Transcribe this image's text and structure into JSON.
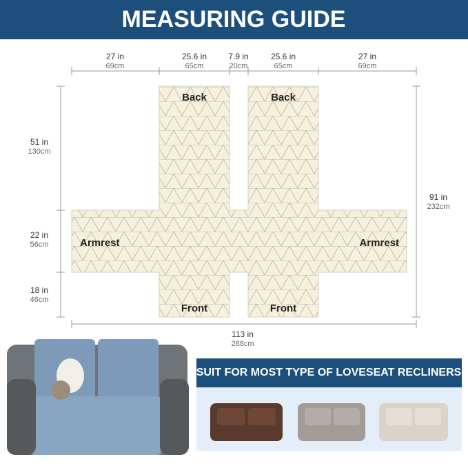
{
  "header": {
    "title": "MEASURING GUIDE"
  },
  "top_dimensions": [
    {
      "inch": "27 in",
      "cm": "69cm"
    },
    {
      "inch": "25.6 in",
      "cm": "65cm"
    },
    {
      "inch": "7.9 in",
      "cm": "20cm"
    },
    {
      "inch": "25.6 in",
      "cm": "65cm"
    },
    {
      "inch": "27 in",
      "cm": "69cm"
    }
  ],
  "left_dimensions": [
    {
      "inch": "51 in",
      "cm": "130cm"
    },
    {
      "inch": "22 in",
      "cm": "56cm"
    },
    {
      "inch": "18 in",
      "cm": "46cm"
    }
  ],
  "right_dimension": {
    "inch": "91 in",
    "cm": "232cm"
  },
  "bottom_dimension": {
    "inch": "113 in",
    "cm": "288cm"
  },
  "panels": {
    "back_left": "Back",
    "back_right": "Back",
    "armrest_left": "Armrest",
    "armrest_right": "Armrest",
    "front_left": "Front",
    "front_right": "Front"
  },
  "banner": {
    "text": "SUIT FOR MOST TYPE OF LOVESEAT RECLINERS"
  }
}
